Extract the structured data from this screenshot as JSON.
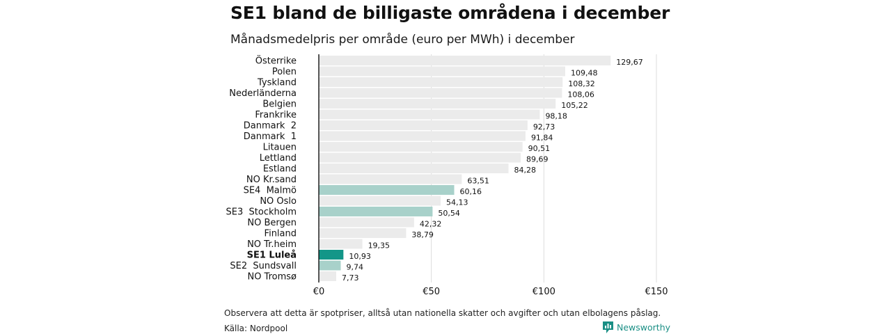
{
  "title": "SE1 bland de billigaste områdena i december",
  "subtitle": "Månadsmedelpris per område (euro per MWh) i december",
  "note": "Observera att detta är spotpriser, alltså utan nationella skatter och avgifter och utan elbolagens påslag.",
  "source": "Källa: Nordpool",
  "brand": {
    "name": "Newsworthy",
    "icon": "newsworthy-logo-icon",
    "color": "#1a8f85"
  },
  "colors": {
    "default": "#ebebeb",
    "swedish": "#a8d1ca",
    "highlight": "#139688",
    "grid": "#dcdcdc",
    "baseline": "#111111"
  },
  "chart_data": {
    "type": "bar",
    "orientation": "horizontal",
    "categories": [
      "Österrike",
      "Polen",
      "Tyskland",
      "Nederländerna",
      "Belgien",
      "Frankrike",
      "Danmark  2",
      "Danmark  1",
      "Litauen",
      "Lettland",
      "Estland",
      "NO Kr.sand",
      "SE4  Malmö",
      "NO Oslo",
      "SE3  Stockholm",
      "NO Bergen",
      "Finland",
      "NO Tr.heim",
      "SE1 Luleå",
      "SE2  Sundsvall",
      "NO Tromsø"
    ],
    "values": [
      129.67,
      109.48,
      108.32,
      108.06,
      105.22,
      98.18,
      92.73,
      91.84,
      90.51,
      89.69,
      84.28,
      63.51,
      60.16,
      54.13,
      50.54,
      42.32,
      38.79,
      19.35,
      10.93,
      9.74,
      7.73
    ],
    "value_labels": [
      "129,67",
      "109,48",
      "108,32",
      "108,06",
      "105,22",
      "98,18",
      "92,73",
      "91,84",
      "90,51",
      "89,69",
      "84,28",
      "63,51",
      "60,16",
      "54,13",
      "50,54",
      "42,32",
      "38,79",
      "19,35",
      "10,93",
      "9,74",
      "7,73"
    ],
    "bar_styles": [
      "default",
      "default",
      "default",
      "default",
      "default",
      "default",
      "default",
      "default",
      "default",
      "default",
      "default",
      "default",
      "swedish",
      "default",
      "swedish",
      "default",
      "default",
      "default",
      "highlight",
      "swedish",
      "default"
    ],
    "bold_categories": [
      "SE1 Luleå"
    ],
    "xlim": [
      0,
      150
    ],
    "xticks": [
      0,
      50,
      100,
      150
    ],
    "xtick_labels": [
      "€0",
      "€50",
      "€100",
      "€150"
    ],
    "grid": true,
    "legend": "none"
  }
}
